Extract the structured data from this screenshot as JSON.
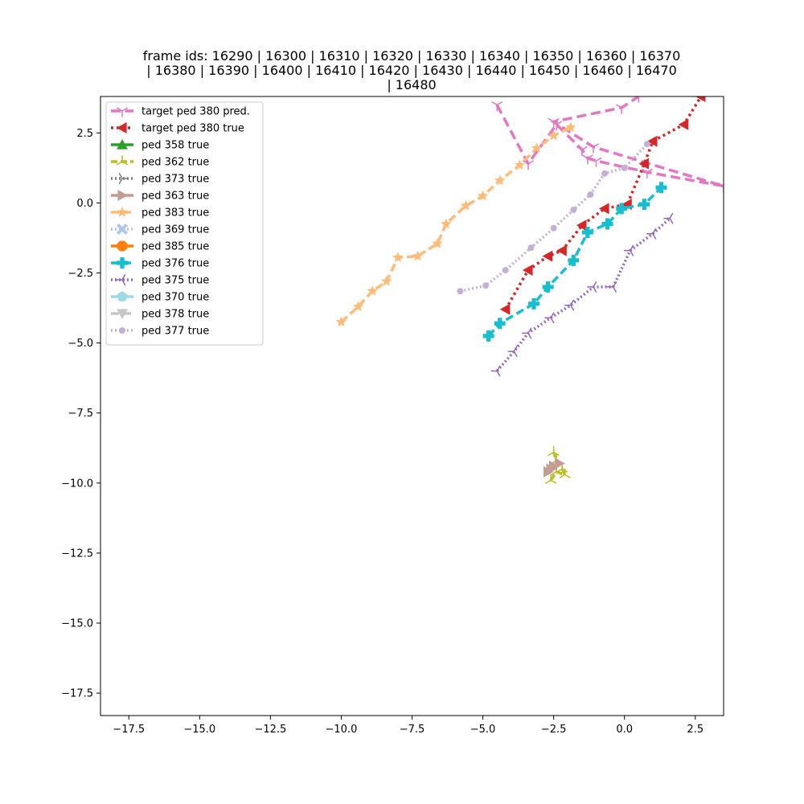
{
  "chart_data": {
    "type": "line",
    "title_lines": [
      "frame ids: 16290 | 16300 | 16310 | 16320 | 16330 | 16340 | 16350 | 16360 | 16370",
      "| 16380 | 16390 | 16400 | 16410 | 16420 | 16430 | 16440 | 16450 | 16460 | 16470",
      "| 16480"
    ],
    "xlabel": "",
    "ylabel": "",
    "xlim": [
      -18.5,
      3.5
    ],
    "ylim": [
      -18.3,
      3.8
    ],
    "xticks": [
      -17.5,
      -15.0,
      -12.5,
      -10.0,
      -7.5,
      -5.0,
      -2.5,
      0.0,
      2.5
    ],
    "yticks": [
      2.5,
      0.0,
      -2.5,
      -5.0,
      -7.5,
      -10.0,
      -12.5,
      -15.0,
      -17.5
    ],
    "grid": false,
    "legend_position": "top-left",
    "series": [
      {
        "name": "target ped 380 pred.",
        "color": "#e377c2",
        "dash": "12,6",
        "marker": "tri_down",
        "points": [
          [
            -4.5,
            3.5
          ],
          [
            -3.4,
            1.4
          ],
          [
            -2.4,
            2.8
          ],
          [
            -1.5,
            1.9
          ],
          [
            -1.3,
            1.6
          ],
          [
            -1.0,
            1.5
          ],
          [
            0.8,
            1.1
          ],
          [
            3.5,
            0.6
          ],
          [
            -1.1,
            2.0
          ],
          [
            -2.5,
            2.9
          ],
          [
            -0.1,
            3.4
          ],
          [
            0.5,
            3.8
          ]
        ]
      },
      {
        "name": "target ped 380 true",
        "color": "#d62728",
        "dash": "3,4",
        "marker": "triangle_left",
        "points": [
          [
            -4.2,
            -3.8
          ],
          [
            -3.4,
            -2.4
          ],
          [
            -2.7,
            -1.9
          ],
          [
            -2.2,
            -1.7
          ],
          [
            -1.5,
            -0.8
          ],
          [
            -0.7,
            -0.2
          ],
          [
            0.1,
            -0.05
          ],
          [
            0.7,
            1.4
          ],
          [
            1.0,
            2.2
          ],
          [
            2.1,
            2.8
          ],
          [
            2.7,
            3.8
          ]
        ]
      },
      {
        "name": "ped 358 true",
        "color": "#2ca02c",
        "dash": "",
        "marker": "triangle_up",
        "points": []
      },
      {
        "name": "ped 362 true",
        "color": "#bcbd22",
        "dash": "8,4",
        "marker": "tri_up",
        "points": [
          [
            -2.6,
            -9.9
          ],
          [
            -2.4,
            -9.6
          ],
          [
            -2.1,
            -9.7
          ],
          [
            -2.2,
            -9.5
          ],
          [
            -2.4,
            -9.2
          ],
          [
            -2.5,
            -8.9
          ]
        ]
      },
      {
        "name": "ped 373 true",
        "color": "#7f7f7f",
        "dash": "2,3",
        "marker": "tri_right",
        "points": []
      },
      {
        "name": "ped 363 true",
        "color": "#c49c94",
        "dash": "",
        "marker": "triangle_right",
        "points": [
          [
            -2.7,
            -9.6
          ],
          [
            -2.5,
            -9.4
          ],
          [
            -2.3,
            -9.3
          ],
          [
            -2.6,
            -9.5
          ]
        ]
      },
      {
        "name": "ped 383 true",
        "color": "#ffbb78",
        "dash": "10,5",
        "marker": "star",
        "points": [
          [
            -10.0,
            -4.25
          ],
          [
            -9.4,
            -3.7
          ],
          [
            -8.9,
            -3.15
          ],
          [
            -8.4,
            -2.8
          ],
          [
            -8.0,
            -1.95
          ],
          [
            -7.3,
            -1.9
          ],
          [
            -6.6,
            -1.45
          ],
          [
            -6.3,
            -0.75
          ],
          [
            -5.6,
            -0.1
          ],
          [
            -5.0,
            0.25
          ],
          [
            -4.4,
            0.8
          ],
          [
            -3.7,
            1.35
          ],
          [
            -3.1,
            1.95
          ],
          [
            -2.5,
            2.4
          ],
          [
            -1.9,
            2.7
          ]
        ]
      },
      {
        "name": "ped 369 true",
        "color": "#aec7e8",
        "dash": "2,3",
        "marker": "x_filled",
        "points": []
      },
      {
        "name": "ped 385 true",
        "color": "#ff7f0e",
        "dash": "",
        "marker": "octagon",
        "points": []
      },
      {
        "name": "ped 376 true",
        "color": "#17becf",
        "dash": "10,5",
        "marker": "plus_filled",
        "points": [
          [
            -4.8,
            -4.75
          ],
          [
            -4.4,
            -4.3
          ],
          [
            -3.2,
            -3.6
          ],
          [
            -2.7,
            -3.0
          ],
          [
            -1.8,
            -2.05
          ],
          [
            -1.3,
            -1.05
          ],
          [
            -0.6,
            -0.75
          ],
          [
            -0.1,
            -0.2
          ],
          [
            0.7,
            -0.05
          ],
          [
            1.3,
            0.55
          ]
        ]
      },
      {
        "name": "ped 375 true",
        "color": "#9467bd",
        "dash": "2,3",
        "marker": "tri_left",
        "points": [
          [
            -4.5,
            -6.0
          ],
          [
            -3.9,
            -5.3
          ],
          [
            -3.4,
            -4.65
          ],
          [
            -2.6,
            -4.1
          ],
          [
            -1.9,
            -3.65
          ],
          [
            -1.1,
            -3.0
          ],
          [
            -0.4,
            -3.0
          ],
          [
            0.2,
            -1.7
          ],
          [
            1.0,
            -1.1
          ],
          [
            1.6,
            -0.55
          ]
        ]
      },
      {
        "name": "ped 370 true",
        "color": "#9edae5",
        "dash": "",
        "marker": "pentagon",
        "points": []
      },
      {
        "name": "ped 378 true",
        "color": "#c7c7c7",
        "dash": "10,5",
        "marker": "triangle_down",
        "points": []
      },
      {
        "name": "ped 377 true",
        "color": "#c5b0d5",
        "dash": "2,3",
        "marker": "circle",
        "points": [
          [
            -5.8,
            -3.15
          ],
          [
            -4.9,
            -2.95
          ],
          [
            -4.2,
            -2.4
          ],
          [
            -3.3,
            -1.6
          ],
          [
            -2.5,
            -0.9
          ],
          [
            -1.8,
            -0.25
          ],
          [
            -1.2,
            0.3
          ],
          [
            -0.7,
            1.05
          ],
          [
            0.0,
            1.25
          ],
          [
            0.8,
            2.1
          ]
        ]
      }
    ]
  }
}
